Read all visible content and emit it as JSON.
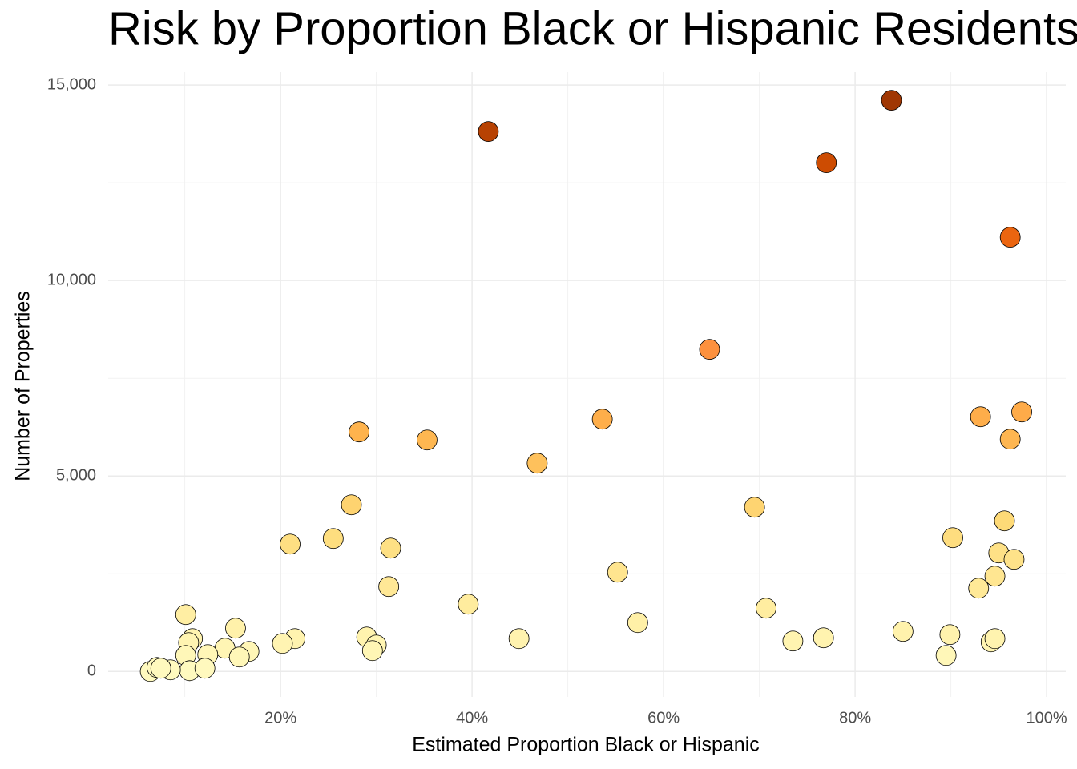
{
  "chart_data": {
    "type": "scatter",
    "title": "Risk by Proportion Black or Hispanic Residents",
    "x_label": "Estimated Proportion Black or Hispanic",
    "y_label": "Number of Properties",
    "x": [
      41.7,
      83.8,
      77.0,
      96.2,
      64.8,
      28.2,
      35.3,
      53.6,
      46.8,
      93.1,
      97.4,
      96.2,
      27.4,
      69.5,
      95.6,
      21.0,
      25.5,
      31.5,
      90.2,
      95.0,
      96.6,
      55.2,
      31.3,
      94.6,
      92.9,
      39.6,
      70.7,
      57.3,
      10.1,
      15.3,
      85.0,
      89.9,
      29.0,
      44.9,
      76.7,
      73.5,
      21.5,
      20.2,
      30.0,
      29.6,
      10.8,
      10.4,
      94.2,
      94.6,
      89.5,
      14.2,
      16.7,
      15.7,
      12.4,
      10.1,
      10.5,
      12.1,
      6.4,
      7.1,
      8.5,
      7.5
    ],
    "values": [
      13811,
      14611,
      13012,
      11107,
      8238,
      6127,
      5922,
      6455,
      5328,
      6516,
      6639,
      5943,
      4262,
      4201,
      3852,
      3258,
      3402,
      3156,
      3422,
      3033,
      2869,
      2541,
      2172,
      2439,
      2131,
      1721,
      1619,
      1250,
      1455,
      1107,
      1025,
      943,
      881,
      840,
      861,
      779,
      840,
      717,
      676,
      533,
      840,
      738,
      758,
      840,
      410,
      594,
      512,
      369,
      430,
      410,
      20,
      82,
      0,
      102,
      41,
      82
    ],
    "xlim": [
      2,
      102
    ],
    "ylim": [
      -650,
      15330
    ],
    "xticks": [
      {
        "value": 20,
        "label": "20%"
      },
      {
        "value": 40,
        "label": "40%"
      },
      {
        "value": 60,
        "label": "60%"
      },
      {
        "value": 80,
        "label": "80%"
      },
      {
        "value": 100,
        "label": "100%"
      }
    ],
    "yticks": [
      0,
      {
        "value": 5000,
        "label": "5,000"
      },
      {
        "value": 10000,
        "label": "10,000"
      },
      {
        "value": 15000,
        "label": "15,000"
      }
    ],
    "grid": true,
    "color_scale": [
      "#ffffcc",
      "#ffeda0",
      "#fed976",
      "#feb24c",
      "#fd8d3c",
      "#f16913",
      "#cc4c02",
      "#8c2d04"
    ],
    "edge_color": "#000000"
  }
}
